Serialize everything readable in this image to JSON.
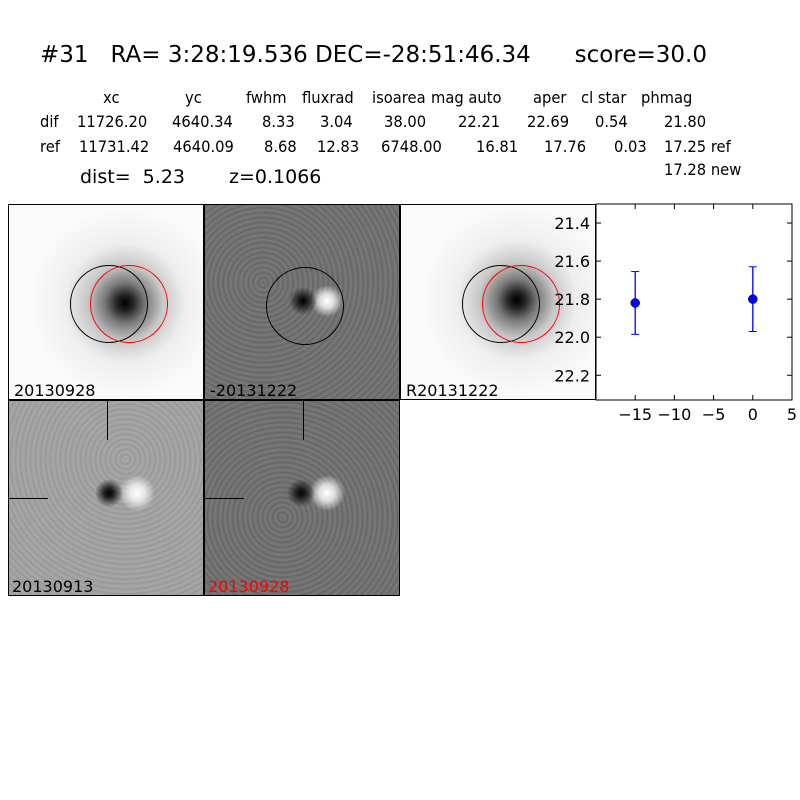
{
  "title": {
    "id": "#31",
    "ra": "RA= 3:28:19.536",
    "dec": "DEC=-28:51:46.34",
    "score": "score=30.0"
  },
  "table": {
    "headers": [
      "xc",
      "yc",
      "fwhm",
      "fluxrad",
      "isoarea",
      "mag auto",
      "aper",
      "cl star",
      "phmag"
    ],
    "rows": [
      {
        "label": "dif",
        "values": [
          "11726.20",
          "4640.34",
          "8.33",
          "3.04",
          "38.00",
          "22.21",
          "22.69",
          "0.54",
          "21.80"
        ]
      },
      {
        "label": "ref",
        "values": [
          "11731.42",
          "4640.09",
          "8.68",
          "12.83",
          "6748.00",
          "16.81",
          "17.76",
          "0.03",
          "17.25 ref"
        ]
      }
    ],
    "extra": "17.28 new",
    "dist": "dist=  5.23",
    "z": "z=0.1066"
  },
  "stamps": [
    {
      "label": "20130928",
      "label_color": "#000000"
    },
    {
      "label": "-20131222",
      "label_color": "#000000"
    },
    {
      "label": "R20131222",
      "label_color": "#000000"
    },
    {
      "label": "20130913",
      "label_color": "#000000"
    },
    {
      "label": "20130928",
      "label_color": "#ff0000"
    }
  ],
  "chart_data": {
    "type": "scatter",
    "error_bars": true,
    "x": [
      -15,
      0
    ],
    "y": [
      21.82,
      21.8
    ],
    "yerr": [
      0.165,
      0.17
    ],
    "xlim": [
      -20,
      5
    ],
    "ylim": [
      22.33,
      21.3
    ],
    "y_inverted": true,
    "xticks": [
      "−15",
      "−10",
      "−5",
      "0",
      "5"
    ],
    "xtick_values": [
      -15,
      -10,
      -5,
      0,
      5
    ],
    "yticks": [
      "21.4",
      "21.6",
      "21.8",
      "22.0",
      "22.2"
    ],
    "ytick_values": [
      21.4,
      21.6,
      21.8,
      22.0,
      22.2
    ],
    "color": "#0000ff",
    "grid": false
  }
}
